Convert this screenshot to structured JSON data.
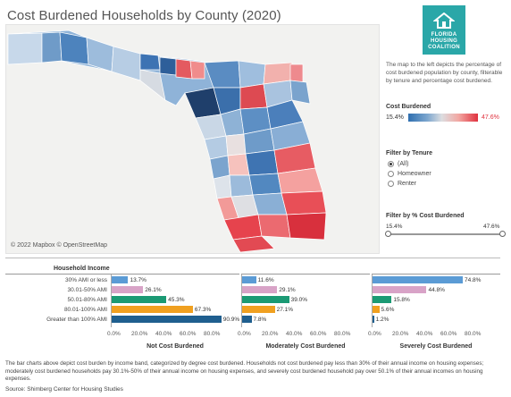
{
  "title": "Cost Burdened Households by County (2020)",
  "logo": {
    "line1": "FLORIDA",
    "line2": "HOUSING",
    "line3": "COALITION"
  },
  "map": {
    "copyright": "© 2022 Mapbox  © OpenStreetMap"
  },
  "description": "The map to the left depicts the percentage of cost burdened population by county, filterable by tenure and percentage cost burdened.",
  "legend": {
    "title": "Cost Burdened",
    "min": "15.4%",
    "max": "47.6%"
  },
  "tenure": {
    "title": "Filter by Tenure",
    "options": [
      "(All)",
      "Homeowner",
      "Renter"
    ],
    "selected": "(All)"
  },
  "slider": {
    "title": "Filter by % Cost Burdened",
    "min": "15.4%",
    "max": "47.6%"
  },
  "household": {
    "title": "Household Income"
  },
  "chart_data": {
    "type": "bar",
    "categories": [
      "30% AMI or less",
      "30.01-50% AMI",
      "50.01-80% AMI",
      "80.01-100% AMI",
      "Greater than 100% AMI"
    ],
    "colors": [
      "#5b9bd5",
      "#d8a3c7",
      "#1b9a74",
      "#f0a020",
      "#1f5f8f"
    ],
    "ticks": [
      "0.0%",
      "20.0%",
      "40.0%",
      "60.0%",
      "80.0%"
    ],
    "panels": [
      {
        "title": "Not Cost Burdened",
        "values": [
          13.7,
          26.1,
          45.3,
          67.3,
          90.9
        ],
        "labels": [
          "13.7%",
          "26.1%",
          "45.3%",
          "67.3%",
          "90.9%"
        ]
      },
      {
        "title": "Moderately Cost Burdened",
        "values": [
          11.6,
          29.1,
          39.0,
          27.1,
          7.8
        ],
        "labels": [
          "11.6%",
          "29.1%",
          "39.0%",
          "27.1%",
          "7.8%"
        ]
      },
      {
        "title": "Severely Cost Burdened",
        "values": [
          74.8,
          44.8,
          15.8,
          5.6,
          1.2
        ],
        "labels": [
          "74.8%",
          "44.8%",
          "15.8%",
          "5.6%",
          "1.2%"
        ]
      }
    ],
    "xlim": [
      0,
      100
    ]
  },
  "footer": "The bar charts above depict cost burden by income band, categorized by degree cost burdened. Households not cost burdened pay less than 30% of their annual income on housing expenses; moderately cost burdened households pay 30.1%-50% of their annual income on housing expenses, and severely cost burdened household pay over 50.1% of their annual incomes on housing expenses.",
  "source": "Source: Shimberg Center for Housing Studies"
}
